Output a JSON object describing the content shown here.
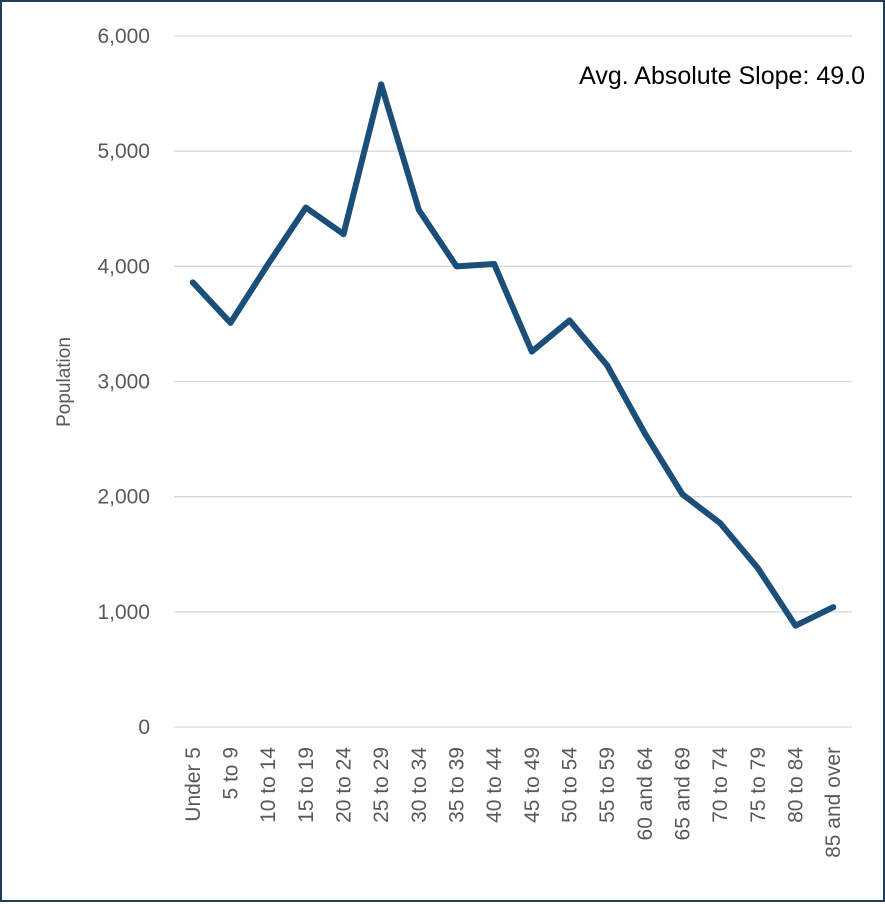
{
  "chart_data": {
    "type": "line",
    "categories": [
      "Under 5",
      "5 to 9",
      "10 to 14",
      "15 to 19",
      "20 to 24",
      "25 to 29",
      "30 to 34",
      "35 to 39",
      "40 to 44",
      "45 to 49",
      "50 to 54",
      "55 to 59",
      "60 and 64",
      "65 and 69",
      "70 to 74",
      "75 to 79",
      "80 to 84",
      "85 and over"
    ],
    "series": [
      {
        "values": [
          3860,
          3510,
          4020,
          4510,
          4280,
          5580,
          4490,
          4000,
          4020,
          3260,
          3530,
          3140,
          2550,
          2020,
          1770,
          1380,
          880,
          1040
        ],
        "color": "#1b4f79"
      }
    ],
    "ylabel": "Population",
    "ylim": [
      0,
      6000
    ],
    "yticks": [
      0,
      1000,
      2000,
      3000,
      4000,
      5000,
      6000
    ],
    "ytick_labels": [
      "0",
      "1,000",
      "2,000",
      "3,000",
      "4,000",
      "5,000",
      "6,000"
    ],
    "grid": true,
    "legend": "none",
    "annotation": "Avg. Absolute Slope: 49.0"
  }
}
